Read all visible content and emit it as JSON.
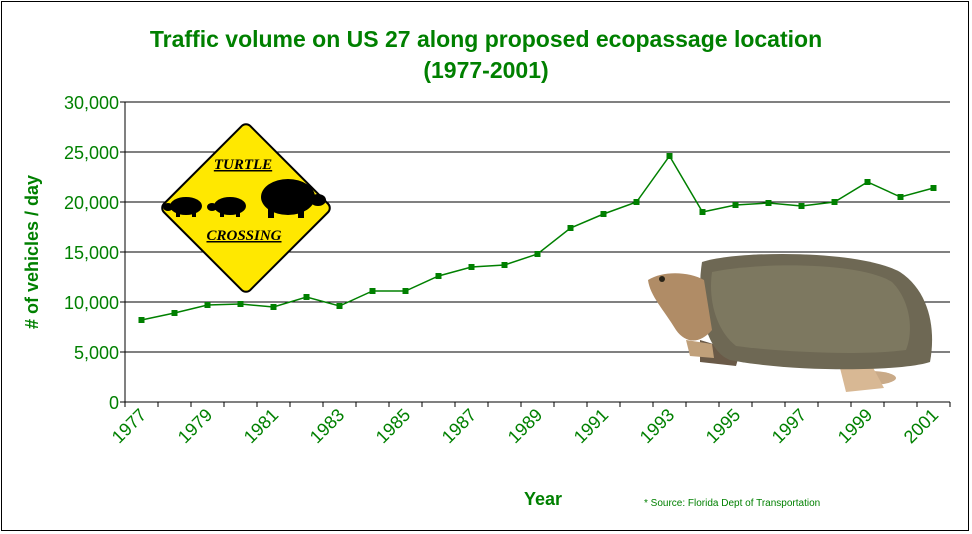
{
  "chart_data": {
    "type": "line",
    "title": "Traffic volume on US 27 along proposed ecopassage location",
    "subtitle": "(1977-2001)",
    "xlabel": "Year",
    "ylabel": "# of vehicles / day",
    "x": [
      1977,
      1978,
      1979,
      1980,
      1981,
      1982,
      1983,
      1984,
      1985,
      1986,
      1987,
      1988,
      1989,
      1990,
      1991,
      1992,
      1993,
      1994,
      1995,
      1996,
      1997,
      1998,
      1999,
      2000,
      2001
    ],
    "values": [
      8200,
      8900,
      9700,
      9800,
      9500,
      10500,
      9600,
      11100,
      11100,
      12600,
      13500,
      13700,
      14800,
      17400,
      18800,
      20000,
      24600,
      19000,
      19700,
      19900,
      19600,
      20000,
      22000,
      20500,
      21400
    ],
    "x_tick_labels": [
      "1977",
      "1979",
      "1981",
      "1983",
      "1985",
      "1987",
      "1989",
      "1991",
      "1993",
      "1995",
      "1997",
      "1999",
      "2001"
    ],
    "y_tick_labels": [
      "0",
      "5,000",
      "10,000",
      "15,000",
      "20,000",
      "25,000",
      "30,000"
    ],
    "ylim": [
      0,
      30000
    ],
    "grid": "horizontal",
    "legend": "none",
    "line_color": "#008000",
    "gridline_color": "#000000"
  },
  "sign": {
    "top_text": "TURTLE",
    "bottom_text": "CROSSING",
    "fill": "#ffe800"
  },
  "source_note": "* Source: Florida Dept of Transportation"
}
